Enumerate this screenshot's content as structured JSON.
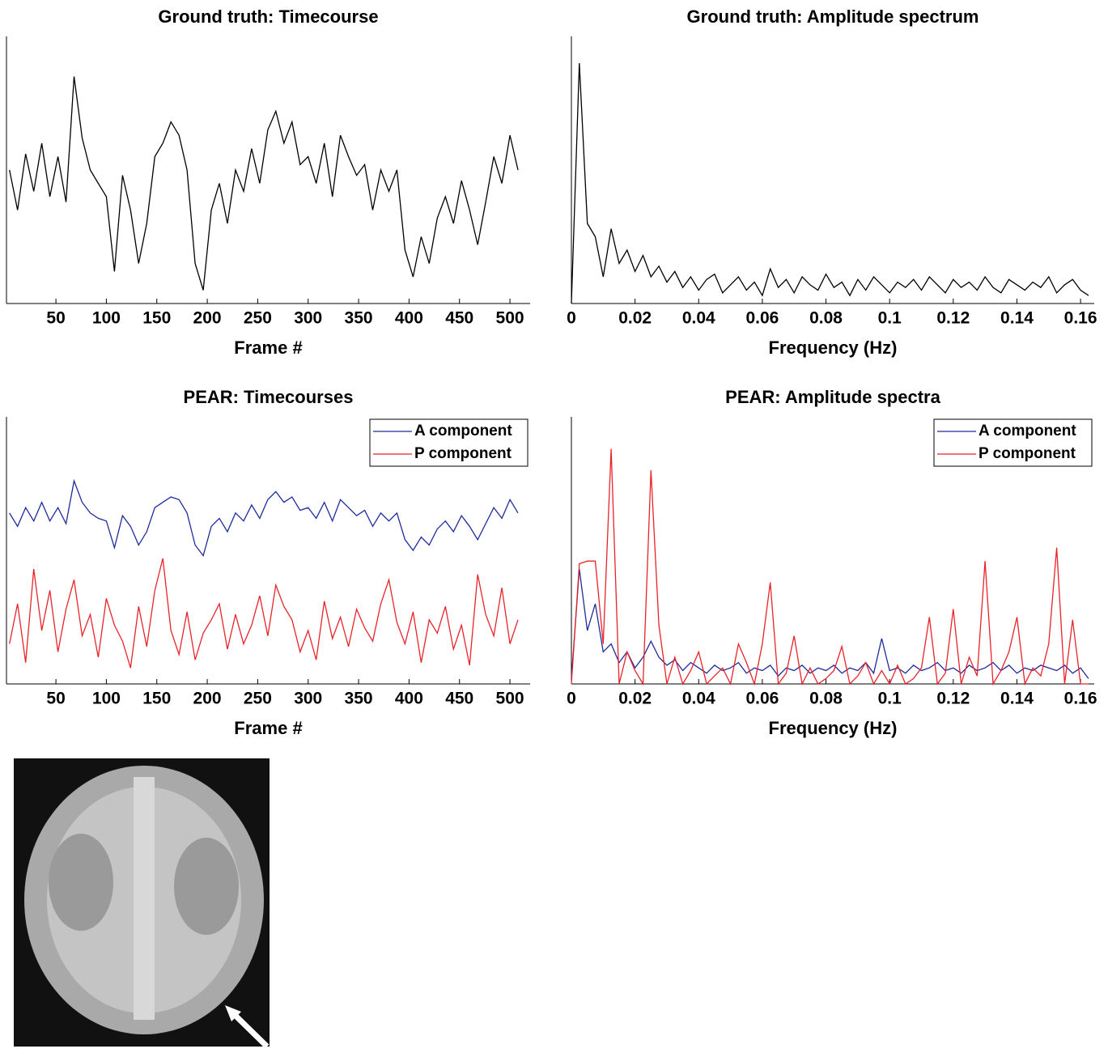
{
  "chart_data": [
    {
      "type": "line",
      "title": "Ground truth: Timecourse",
      "xlabel": "Frame #",
      "x": [
        4,
        12,
        20,
        28,
        36,
        44,
        52,
        60,
        68,
        76,
        84,
        92,
        100,
        108,
        116,
        124,
        132,
        140,
        148,
        156,
        164,
        172,
        180,
        188,
        196,
        204,
        212,
        220,
        228,
        236,
        244,
        252,
        260,
        268,
        276,
        284,
        292,
        300,
        308,
        316,
        324,
        332,
        340,
        348,
        356,
        364,
        372,
        380,
        388,
        396,
        404,
        412,
        420,
        428,
        436,
        444,
        452,
        460,
        468,
        476,
        484,
        492,
        500,
        508
      ],
      "values": [
        5.0,
        3.5,
        5.6,
        4.2,
        6.0,
        4.0,
        5.5,
        3.8,
        8.5,
        6.2,
        5.0,
        4.5,
        4.0,
        1.2,
        4.8,
        3.5,
        1.5,
        3.0,
        5.5,
        6.0,
        6.8,
        6.3,
        5.0,
        1.5,
        0.5,
        3.5,
        4.5,
        3.0,
        5.0,
        4.2,
        5.8,
        4.5,
        6.5,
        7.2,
        6.0,
        6.8,
        5.2,
        5.5,
        4.5,
        6.0,
        4.0,
        6.3,
        5.5,
        4.8,
        5.2,
        3.5,
        5.0,
        4.2,
        5.0,
        2.0,
        1.0,
        2.5,
        1.5,
        3.2,
        4.0,
        3.0,
        4.6,
        3.5,
        2.2,
        3.8,
        5.5,
        4.5,
        6.3,
        5.0
      ],
      "color": "#000000",
      "xlim": [
        1,
        520
      ],
      "ylim": [
        0,
        10
      ],
      "xticks": [
        50,
        100,
        150,
        200,
        250,
        300,
        350,
        400,
        450,
        500
      ]
    },
    {
      "type": "line",
      "title": "Ground truth: Amplitude spectrum",
      "xlabel": "Frequency (Hz)",
      "x": [
        0,
        0.0025,
        0.005,
        0.0075,
        0.01,
        0.0125,
        0.015,
        0.0175,
        0.02,
        0.0225,
        0.025,
        0.0275,
        0.03,
        0.0325,
        0.035,
        0.0375,
        0.04,
        0.0425,
        0.045,
        0.0475,
        0.05,
        0.0525,
        0.055,
        0.0575,
        0.06,
        0.0625,
        0.065,
        0.0675,
        0.07,
        0.0725,
        0.075,
        0.0775,
        0.08,
        0.0825,
        0.085,
        0.0875,
        0.09,
        0.0925,
        0.095,
        0.0975,
        0.1,
        0.1025,
        0.105,
        0.1075,
        0.11,
        0.1125,
        0.115,
        0.1175,
        0.12,
        0.1225,
        0.125,
        0.1275,
        0.13,
        0.1325,
        0.135,
        0.1375,
        0.14,
        0.1425,
        0.145,
        0.1475,
        0.15,
        0.1525,
        0.155,
        0.1575,
        0.16,
        0.1625
      ],
      "values": [
        0,
        9.0,
        3.0,
        2.5,
        1.0,
        2.8,
        1.5,
        2.0,
        1.2,
        1.8,
        1.0,
        1.4,
        0.8,
        1.2,
        0.6,
        1.0,
        0.5,
        0.9,
        1.1,
        0.4,
        0.7,
        1.0,
        0.5,
        0.8,
        0.3,
        1.3,
        0.6,
        0.9,
        0.4,
        1.0,
        0.7,
        0.5,
        1.1,
        0.6,
        0.8,
        0.3,
        0.9,
        0.5,
        1.0,
        0.7,
        0.4,
        0.8,
        0.6,
        0.9,
        0.5,
        1.0,
        0.7,
        0.4,
        0.9,
        0.6,
        0.8,
        0.5,
        1.0,
        0.6,
        0.4,
        0.9,
        0.7,
        0.5,
        0.8,
        0.6,
        1.0,
        0.4,
        0.7,
        0.9,
        0.5,
        0.3
      ],
      "color": "#000000",
      "xlim": [
        0,
        0.1643
      ],
      "ylim": [
        0,
        10
      ],
      "xticks": [
        0,
        0.02,
        0.04,
        0.06,
        0.08,
        0.1,
        0.12,
        0.14,
        0.16
      ]
    },
    {
      "type": "line",
      "title": "PEAR: Timecourses",
      "xlabel": "Frame #",
      "x": [
        4,
        12,
        20,
        28,
        36,
        44,
        52,
        60,
        68,
        76,
        84,
        92,
        100,
        108,
        116,
        124,
        132,
        140,
        148,
        156,
        164,
        172,
        180,
        188,
        196,
        204,
        212,
        220,
        228,
        236,
        244,
        252,
        260,
        268,
        276,
        284,
        292,
        300,
        308,
        316,
        324,
        332,
        340,
        348,
        356,
        364,
        372,
        380,
        388,
        396,
        404,
        412,
        420,
        428,
        436,
        444,
        452,
        460,
        468,
        476,
        484,
        492,
        500,
        508
      ],
      "series": [
        {
          "name": "A component",
          "color": "#1f2b9c",
          "values": [
            6.4,
            5.9,
            6.6,
            6.1,
            6.8,
            6.1,
            6.6,
            6.0,
            7.6,
            6.8,
            6.4,
            6.2,
            6.1,
            5.1,
            6.3,
            5.9,
            5.2,
            5.7,
            6.6,
            6.8,
            7.0,
            6.9,
            6.4,
            5.2,
            4.8,
            5.9,
            6.2,
            5.7,
            6.4,
            6.1,
            6.7,
            6.2,
            6.9,
            7.2,
            6.8,
            7.0,
            6.5,
            6.6,
            6.2,
            6.8,
            6.1,
            6.9,
            6.6,
            6.3,
            6.5,
            5.9,
            6.4,
            6.1,
            6.4,
            5.4,
            5.0,
            5.5,
            5.2,
            5.8,
            6.1,
            5.7,
            6.3,
            5.9,
            5.4,
            6.0,
            6.6,
            6.2,
            6.9,
            6.4
          ]
        },
        {
          "name": "P component",
          "color": "#e8232a",
          "values": [
            1.5,
            3.0,
            0.8,
            4.3,
            2.0,
            3.5,
            1.2,
            2.8,
            3.9,
            1.8,
            2.6,
            1.0,
            3.2,
            2.2,
            1.6,
            0.6,
            2.9,
            1.4,
            3.5,
            4.7,
            2.0,
            1.1,
            2.7,
            0.9,
            1.9,
            2.4,
            3.0,
            1.3,
            2.6,
            1.5,
            2.2,
            3.3,
            1.8,
            3.7,
            2.9,
            2.4,
            1.2,
            2.0,
            0.9,
            3.1,
            1.7,
            2.5,
            1.4,
            2.8,
            2.1,
            1.6,
            3.0,
            3.9,
            2.3,
            1.5,
            2.7,
            0.8,
            2.4,
            1.9,
            2.9,
            1.3,
            2.2,
            0.7,
            4.1,
            2.6,
            1.8,
            3.6,
            1.5,
            2.4
          ]
        }
      ],
      "legend": "upper right",
      "xlim": [
        1,
        520
      ],
      "ylim": [
        0,
        10
      ],
      "xticks": [
        50,
        100,
        150,
        200,
        250,
        300,
        350,
        400,
        450,
        500
      ]
    },
    {
      "type": "line",
      "title": "PEAR: Amplitude spectra",
      "xlabel": "Frequency (Hz)",
      "x": [
        0,
        0.0025,
        0.005,
        0.0075,
        0.01,
        0.0125,
        0.015,
        0.0175,
        0.02,
        0.0225,
        0.025,
        0.0275,
        0.03,
        0.0325,
        0.035,
        0.0375,
        0.04,
        0.0425,
        0.045,
        0.0475,
        0.05,
        0.0525,
        0.055,
        0.0575,
        0.06,
        0.0625,
        0.065,
        0.0675,
        0.07,
        0.0725,
        0.075,
        0.0775,
        0.08,
        0.0825,
        0.085,
        0.0875,
        0.09,
        0.0925,
        0.095,
        0.0975,
        0.1,
        0.1025,
        0.105,
        0.1075,
        0.11,
        0.1125,
        0.115,
        0.1175,
        0.12,
        0.1225,
        0.125,
        0.1275,
        0.13,
        0.1325,
        0.135,
        0.1375,
        0.14,
        0.1425,
        0.145,
        0.1475,
        0.15,
        0.1525,
        0.155,
        0.1575,
        0.16,
        0.1625
      ],
      "series": [
        {
          "name": "A component",
          "color": "#1f2b9c",
          "values": [
            0.2,
            4.3,
            2.0,
            3.0,
            1.2,
            1.5,
            0.8,
            1.2,
            0.6,
            1.0,
            1.6,
            1.0,
            0.7,
            0.9,
            0.5,
            0.8,
            0.6,
            0.4,
            0.7,
            0.5,
            0.6,
            0.8,
            0.4,
            0.6,
            0.5,
            0.7,
            0.3,
            0.6,
            0.5,
            0.7,
            0.4,
            0.6,
            0.5,
            0.7,
            0.4,
            0.6,
            0.5,
            0.8,
            0.4,
            1.7,
            0.5,
            0.6,
            0.4,
            0.7,
            0.5,
            0.6,
            0.8,
            0.5,
            0.6,
            0.4,
            0.7,
            0.5,
            0.6,
            0.8,
            0.5,
            0.7,
            0.4,
            0.6,
            0.5,
            0.7,
            0.6,
            0.5,
            0.7,
            0.4,
            0.6,
            0.2
          ]
        },
        {
          "name": "P component",
          "color": "#e8232a",
          "values": [
            0,
            4.5,
            4.6,
            4.6,
            1.5,
            8.8,
            0,
            1.2,
            0.5,
            0,
            8.0,
            2.2,
            0,
            1.0,
            0,
            0.5,
            1.2,
            0,
            0.3,
            0.6,
            0,
            1.5,
            0.8,
            0,
            1.5,
            3.8,
            0,
            0.4,
            1.8,
            0,
            0.6,
            0,
            0.2,
            0.5,
            1.4,
            0,
            0.3,
            0.8,
            0,
            0.5,
            0,
            0.7,
            0,
            0.2,
            0.6,
            2.5,
            0,
            0.4,
            2.8,
            0,
            1.0,
            0.3,
            4.6,
            0,
            0.5,
            1.2,
            2.5,
            0,
            0.6,
            0.3,
            1.5,
            5.1,
            0,
            2.4,
            0,
            0
          ]
        }
      ],
      "legend": "upper right",
      "xlim": [
        0,
        0.1643
      ],
      "ylim": [
        0,
        10
      ],
      "xticks": [
        0,
        0.02,
        0.04,
        0.06,
        0.08,
        0.1,
        0.12,
        0.14,
        0.16
      ]
    }
  ]
}
